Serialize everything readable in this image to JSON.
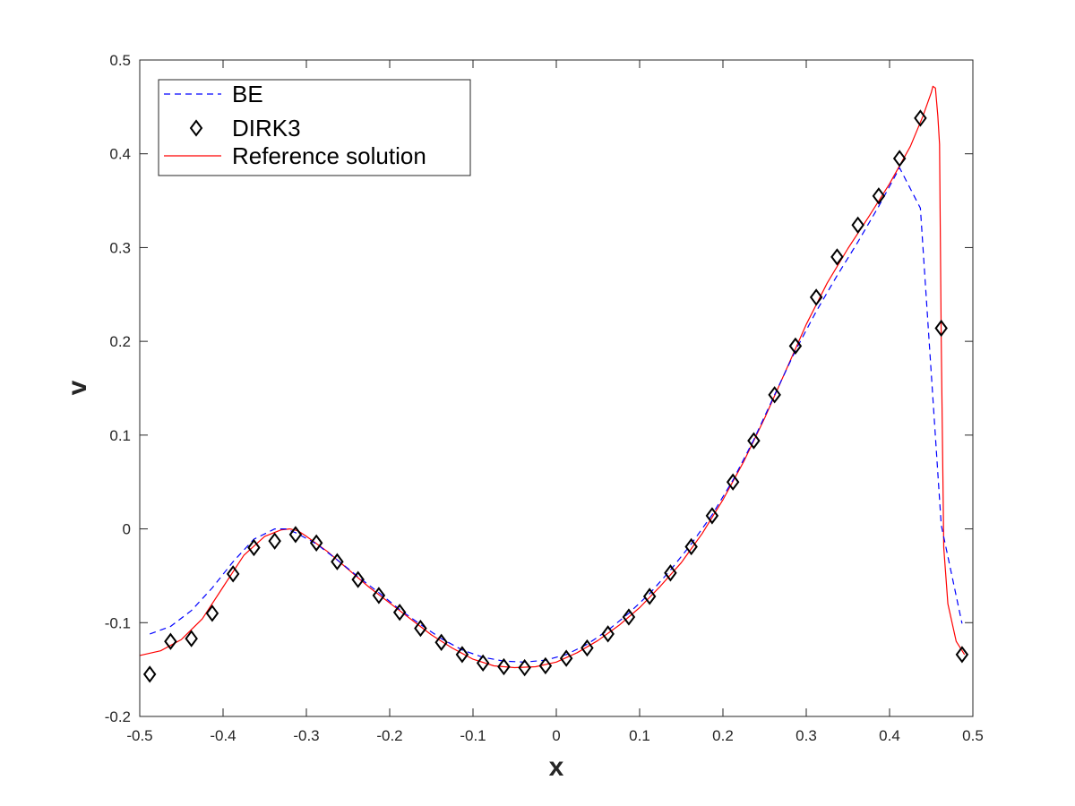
{
  "chart_data": {
    "type": "line",
    "title": "",
    "xlabel": "x",
    "ylabel": "v",
    "xlim": [
      -0.5,
      0.5
    ],
    "ylim": [
      -0.2,
      0.5
    ],
    "xticks": [
      "-0.5",
      "-0.4",
      "-0.3",
      "-0.2",
      "-0.1",
      "0",
      "0.1",
      "0.2",
      "0.3",
      "0.4",
      "0.5"
    ],
    "yticks": [
      "-0.2",
      "-0.1",
      "0",
      "0.1",
      "0.2",
      "0.3",
      "0.4",
      "0.5"
    ],
    "grid": false,
    "legend_placement": "top-left",
    "series": [
      {
        "name": "BE",
        "style": "dashed",
        "color": "#0000ff",
        "x": [
          -0.488,
          -0.463,
          -0.438,
          -0.413,
          -0.388,
          -0.363,
          -0.338,
          -0.325,
          -0.313,
          -0.288,
          -0.263,
          -0.238,
          -0.213,
          -0.188,
          -0.163,
          -0.138,
          -0.113,
          -0.088,
          -0.063,
          -0.038,
          -0.013,
          0.012,
          0.037,
          0.062,
          0.087,
          0.112,
          0.137,
          0.162,
          0.187,
          0.212,
          0.237,
          0.262,
          0.287,
          0.312,
          0.337,
          0.362,
          0.387,
          0.412,
          0.437,
          0.462,
          0.487
        ],
        "y": [
          -0.112,
          -0.104,
          -0.087,
          -0.063,
          -0.035,
          -0.011,
          0.0,
          0.0,
          -0.004,
          -0.016,
          -0.033,
          -0.051,
          -0.068,
          -0.086,
          -0.102,
          -0.117,
          -0.129,
          -0.137,
          -0.141,
          -0.142,
          -0.14,
          -0.134,
          -0.123,
          -0.108,
          -0.09,
          -0.069,
          -0.044,
          -0.016,
          0.015,
          0.052,
          0.095,
          0.143,
          0.19,
          0.232,
          0.27,
          0.306,
          0.344,
          0.385,
          0.342,
          0.004,
          -0.101
        ]
      },
      {
        "name": "DIRK3",
        "style": "diamond-markers",
        "color": "#000000",
        "x": [
          -0.488,
          -0.463,
          -0.438,
          -0.413,
          -0.388,
          -0.363,
          -0.338,
          -0.313,
          -0.288,
          -0.263,
          -0.238,
          -0.213,
          -0.188,
          -0.163,
          -0.138,
          -0.113,
          -0.088,
          -0.063,
          -0.038,
          -0.013,
          0.012,
          0.037,
          0.062,
          0.087,
          0.112,
          0.137,
          0.162,
          0.187,
          0.212,
          0.237,
          0.262,
          0.287,
          0.312,
          0.337,
          0.362,
          0.387,
          0.412,
          0.437,
          0.462,
          0.487
        ],
        "y": [
          -0.155,
          -0.12,
          -0.117,
          -0.09,
          -0.048,
          -0.02,
          -0.013,
          -0.006,
          -0.015,
          -0.035,
          -0.054,
          -0.071,
          -0.089,
          -0.106,
          -0.121,
          -0.134,
          -0.143,
          -0.147,
          -0.148,
          -0.146,
          -0.138,
          -0.127,
          -0.112,
          -0.094,
          -0.072,
          -0.047,
          -0.019,
          0.014,
          0.05,
          0.094,
          0.143,
          0.195,
          0.247,
          0.29,
          0.324,
          0.355,
          0.395,
          0.438,
          0.214,
          -0.134
        ]
      },
      {
        "name": "Reference solution",
        "style": "solid",
        "color": "#ff0000",
        "x": [
          -0.5,
          -0.475,
          -0.45,
          -0.425,
          -0.4,
          -0.375,
          -0.35,
          -0.33,
          -0.32,
          -0.31,
          -0.3,
          -0.275,
          -0.25,
          -0.225,
          -0.2,
          -0.175,
          -0.15,
          -0.125,
          -0.1,
          -0.075,
          -0.05,
          -0.025,
          0.0,
          0.025,
          0.05,
          0.075,
          0.1,
          0.125,
          0.15,
          0.175,
          0.2,
          0.225,
          0.25,
          0.275,
          0.3,
          0.325,
          0.35,
          0.375,
          0.4,
          0.425,
          0.44,
          0.45,
          0.452,
          0.455,
          0.458,
          0.46,
          0.462,
          0.465,
          0.47,
          0.48,
          0.49
        ],
        "y": [
          -0.135,
          -0.13,
          -0.118,
          -0.096,
          -0.062,
          -0.028,
          -0.008,
          -0.001,
          0.0,
          -0.002,
          -0.008,
          -0.024,
          -0.043,
          -0.062,
          -0.079,
          -0.096,
          -0.113,
          -0.127,
          -0.139,
          -0.146,
          -0.148,
          -0.147,
          -0.142,
          -0.132,
          -0.119,
          -0.103,
          -0.084,
          -0.061,
          -0.036,
          -0.005,
          0.031,
          0.072,
          0.118,
          0.168,
          0.218,
          0.262,
          0.299,
          0.333,
          0.368,
          0.408,
          0.44,
          0.465,
          0.472,
          0.47,
          0.44,
          0.41,
          0.2,
          -0.02,
          -0.08,
          -0.12,
          -0.134
        ]
      }
    ]
  }
}
